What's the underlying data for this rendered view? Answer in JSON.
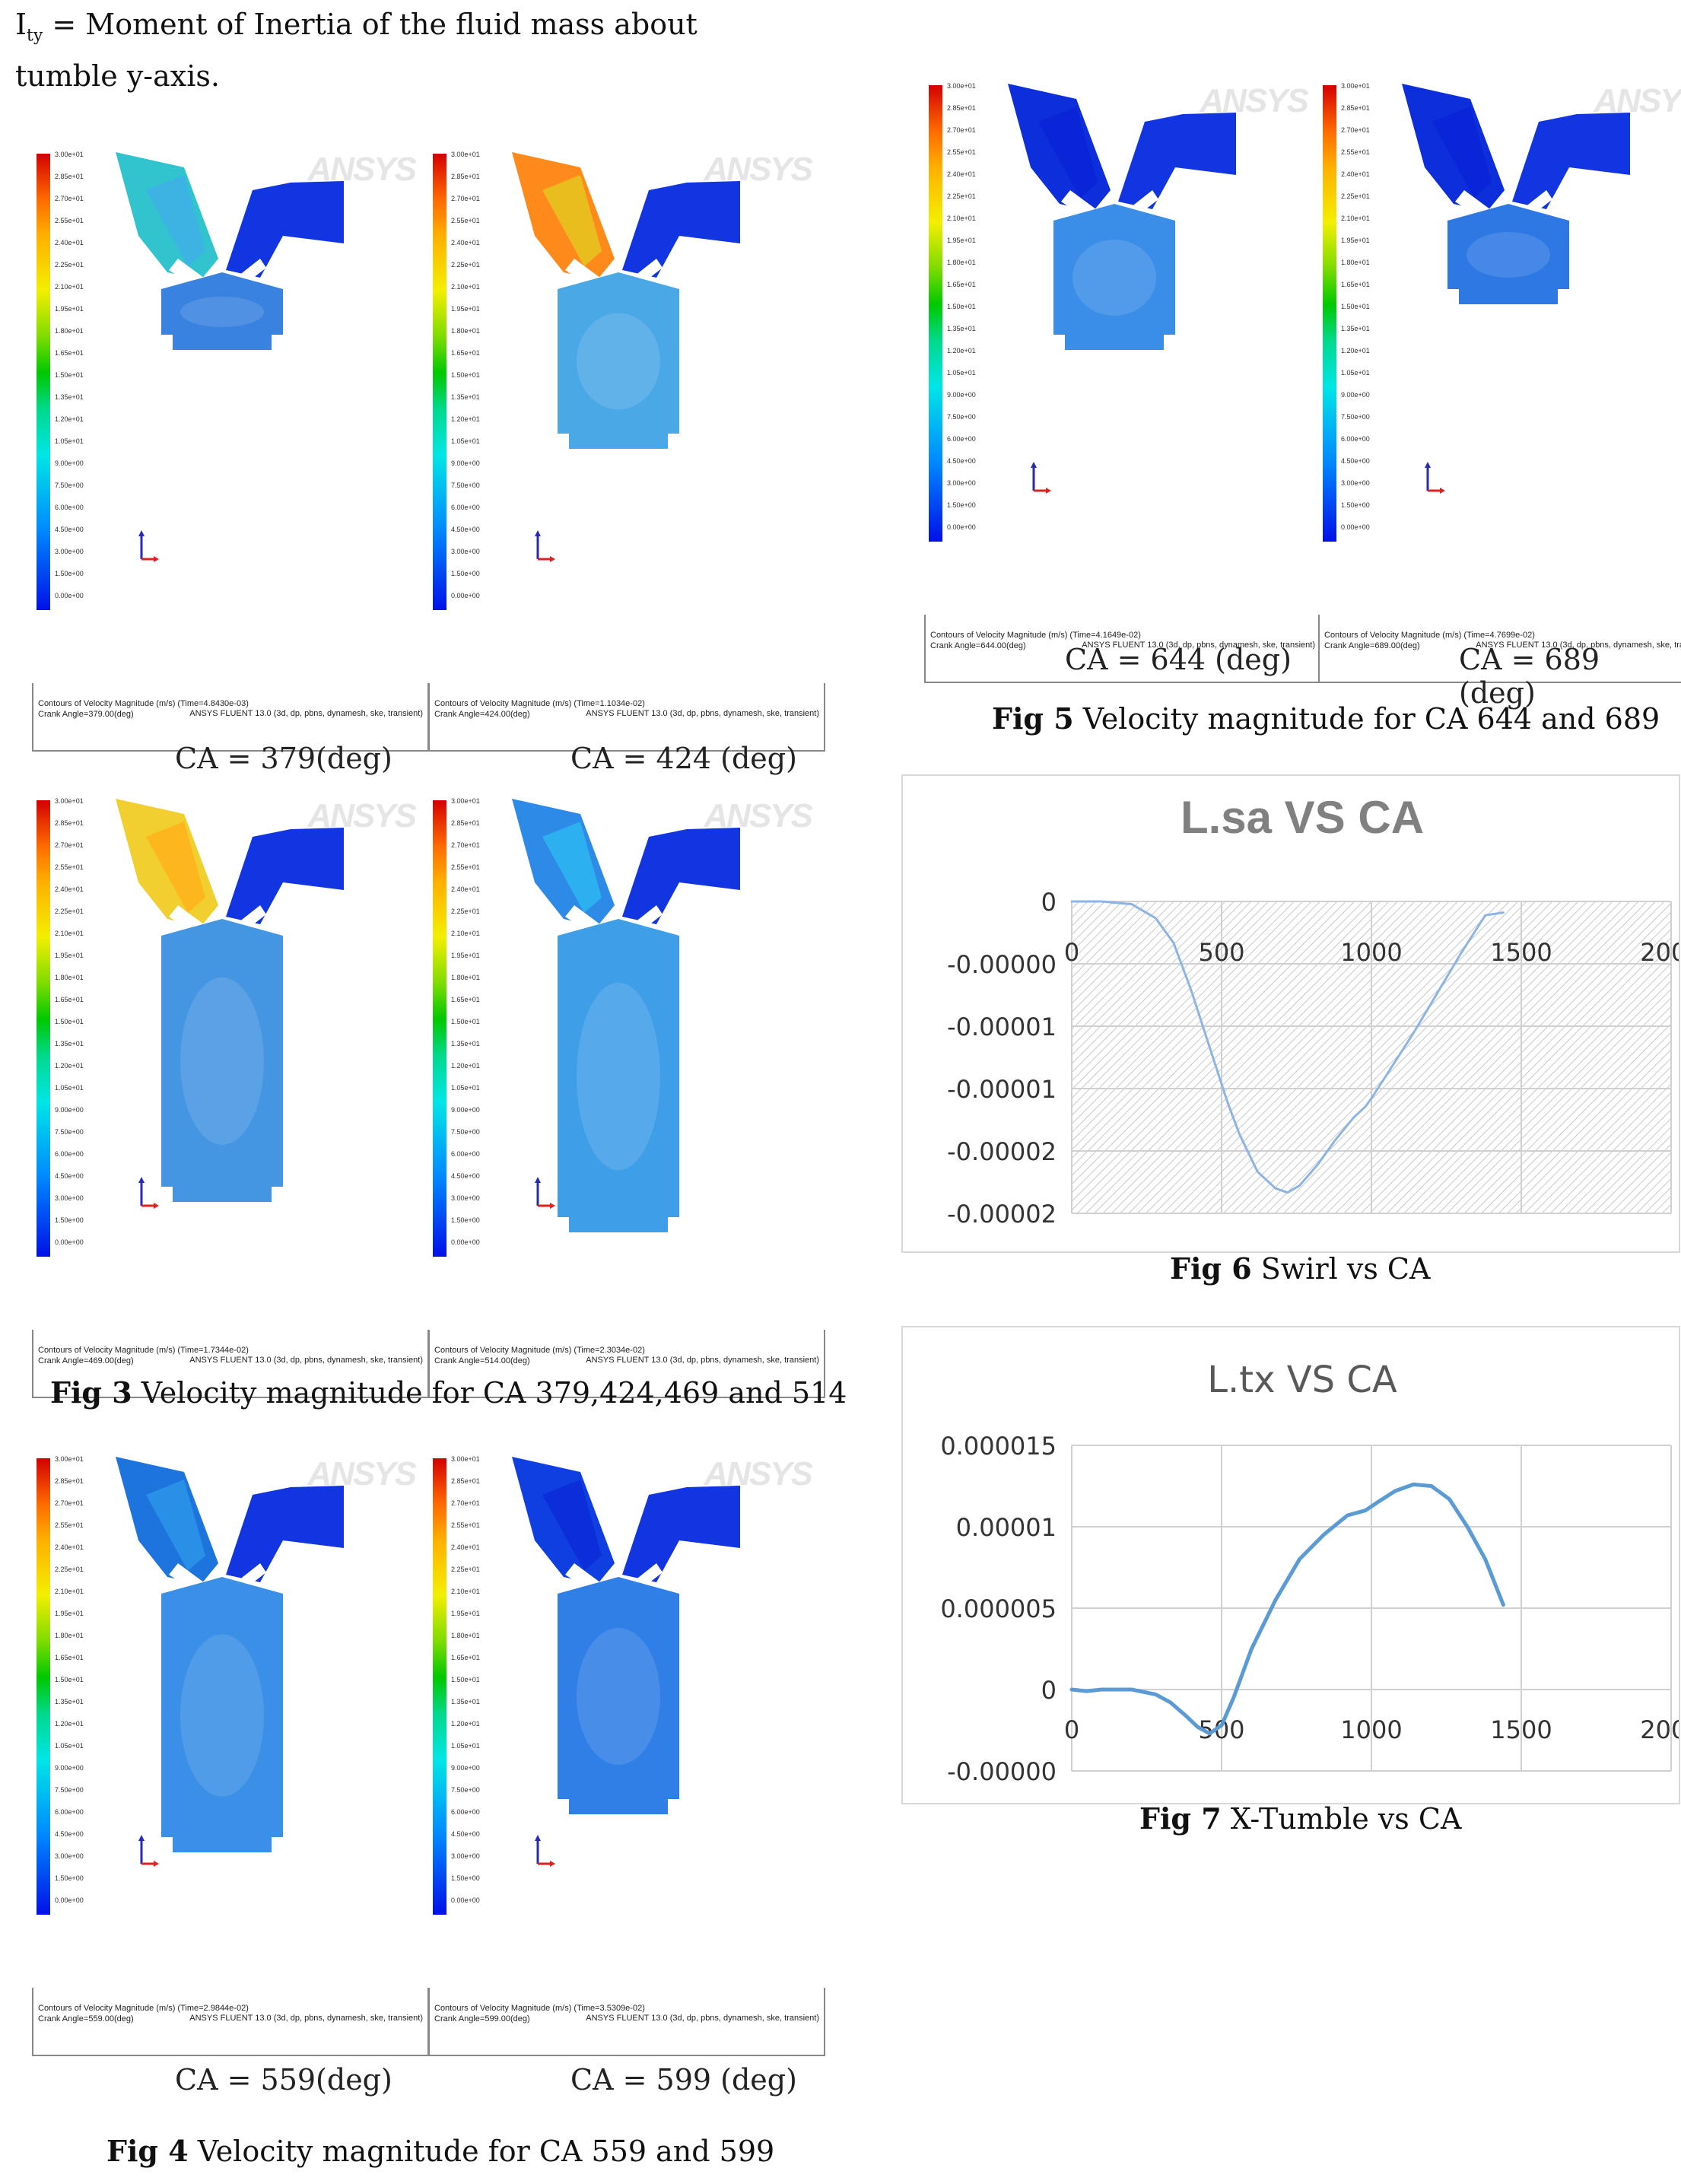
{
  "intro": {
    "symbol": "I",
    "subscript": "ty",
    "text": " = Moment of Inertia of the fluid mass about tumble y-axis."
  },
  "panel_common": {
    "logo": "ANSYS",
    "footer_line1": "Contours of Velocity Magnitude (m/s)",
    "footer_right": "ANSYS FLUENT 13.0 (3d, dp, pbns, dynamesh, ske, transient)",
    "legend_labels": [
      "3.00e+01",
      "2.85e+01",
      "2.70e+01",
      "2.55e+01",
      "2.40e+01",
      "2.25e+01",
      "2.10e+01",
      "1.95e+01",
      "1.80e+01",
      "1.65e+01",
      "1.50e+01",
      "1.35e+01",
      "1.20e+01",
      "1.05e+01",
      "9.00e+00",
      "7.50e+00",
      "6.00e+00",
      "4.50e+00",
      "3.00e+00",
      "1.50e+00",
      "0.00e+00"
    ]
  },
  "panels": [
    {
      "time": "(Time=4.8430e-03)",
      "crank": "Crank Angle=379.00(deg)",
      "ca_label": "CA = 379(deg)"
    },
    {
      "time": "(Time=1.1034e-02)",
      "crank": "Crank Angle=424.00(deg)",
      "ca_label": "CA = 424 (deg)"
    },
    {
      "time": "(Time=1.7344e-02)",
      "crank": "Crank Angle=469.00(deg)",
      "ca_label": ""
    },
    {
      "time": "(Time=2.3034e-02)",
      "crank": "Crank Angle=514.00(deg)",
      "ca_label": ""
    },
    {
      "time": "(Time=2.9844e-02)",
      "crank": "Crank Angle=559.00(deg)",
      "ca_label": "CA = 559(deg)"
    },
    {
      "time": "(Time=3.5309e-02)",
      "crank": "Crank Angle=599.00(deg)",
      "ca_label": "CA = 599 (deg)"
    },
    {
      "time": "(Time=4.1649e-02)",
      "crank": "Crank Angle=644.00(deg)",
      "ca_label": "CA = 644 (deg)"
    },
    {
      "time": "(Time=4.7699e-02)",
      "crank": "Crank Angle=689.00(deg)",
      "ca_label": "CA = 689 (deg)"
    }
  ],
  "captions": {
    "fig3_bold": "Fig 3",
    "fig3_text": " Velocity magnitude for CA 379,424,469 and 514",
    "fig4_bold": "Fig 4",
    "fig4_text": " Velocity magnitude for CA 559 and 599",
    "fig5_bold": "Fig 5",
    "fig5_text": " Velocity magnitude for CA 644 and 689",
    "fig6_bold": "Fig 6",
    "fig6_text": " Swirl vs CA",
    "fig7_bold": "Fig 7",
    "fig7_text": " X-Tumble vs CA"
  },
  "chart_data": [
    {
      "type": "line",
      "title": "L.sa VS CA",
      "xlabel": "",
      "ylabel": "",
      "x_ticks": [
        "0",
        "500",
        "1000",
        "1500",
        "2000"
      ],
      "y_ticks": [
        "0",
        "-0.00000",
        "-0.00001",
        "-0.00001",
        "-0.00002",
        "-0.00002"
      ],
      "xlim": [
        0,
        2000
      ],
      "ylim": [
        -2.25e-05,
        0
      ],
      "grid": true,
      "hatched_plot_area": true,
      "series_color": "#8db4e2",
      "x": [
        0,
        100,
        200,
        280,
        340,
        400,
        460,
        520,
        560,
        620,
        680,
        720,
        760,
        820,
        880,
        940,
        980,
        1000,
        1060,
        1140,
        1220,
        1300,
        1380,
        1440
      ],
      "y": [
        0,
        0,
        -2e-07,
        -1.2e-06,
        -3e-06,
        -6.5e-06,
        -1.05e-05,
        -1.45e-05,
        -1.68e-05,
        -1.95e-05,
        -2.07e-05,
        -2.1e-05,
        -2.05e-05,
        -1.9e-05,
        -1.72e-05,
        -1.56e-05,
        -1.48e-05,
        -1.42e-05,
        -1.22e-05,
        -9.5e-06,
        -6.6e-06,
        -3.7e-06,
        -1e-06,
        -8e-07
      ]
    },
    {
      "type": "line",
      "title": "L.tx VS CA",
      "xlabel": "",
      "ylabel": "",
      "x_ticks": [
        "0",
        "500",
        "1000",
        "1500",
        "2000"
      ],
      "y_ticks": [
        "0.000015",
        "0.00001",
        "0.000005",
        "0",
        "-0.00000"
      ],
      "xlim": [
        0,
        2000
      ],
      "ylim": [
        -5e-06,
        1.5e-05
      ],
      "grid": true,
      "series_color": "#5b9bd5",
      "x": [
        0,
        50,
        100,
        200,
        280,
        330,
        380,
        420,
        460,
        500,
        540,
        600,
        680,
        760,
        840,
        920,
        980,
        1020,
        1080,
        1140,
        1200,
        1260,
        1320,
        1380,
        1440
      ],
      "y": [
        0,
        -1e-07,
        0,
        0,
        -3e-07,
        -8e-07,
        -1.6e-06,
        -2.3e-06,
        -2.7e-06,
        -2.2e-06,
        -5e-07,
        2.5e-06,
        5.5e-06,
        8e-06,
        9.5e-06,
        1.07e-05,
        1.1e-05,
        1.15e-05,
        1.22e-05,
        1.26e-05,
        1.25e-05,
        1.17e-05,
        1e-05,
        8e-06,
        5.2e-06
      ]
    }
  ]
}
